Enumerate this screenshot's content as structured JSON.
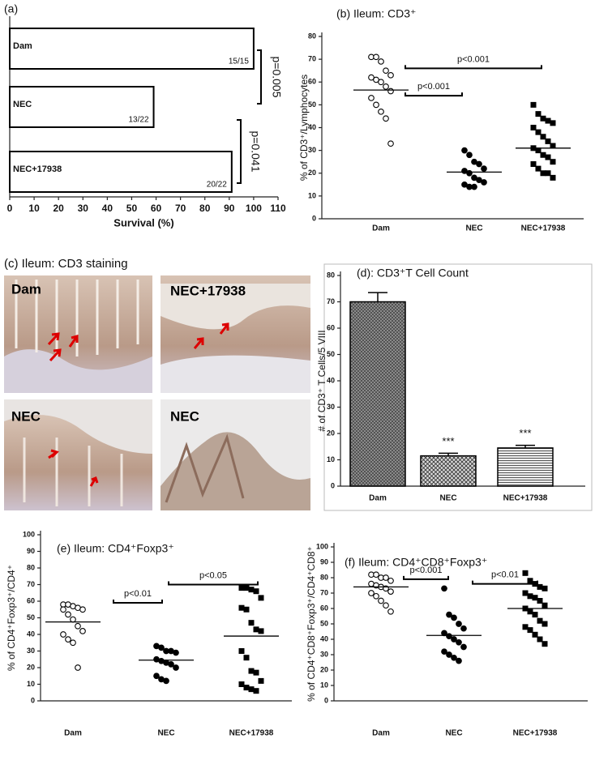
{
  "chart_data": [
    {
      "type": "hbar",
      "title": "(a)",
      "categories": [
        "Dam",
        "NEC",
        "NEC+17938"
      ],
      "values": [
        100,
        59,
        91
      ],
      "value_labels": [
        "15/15",
        "13/22",
        "20/22"
      ],
      "color": "#ffffff",
      "xlim": [
        0,
        110
      ],
      "xticks": [
        0,
        10,
        20,
        30,
        40,
        50,
        60,
        70,
        80,
        90,
        100,
        110
      ],
      "xlabel": "Survival (%)",
      "annotations": [
        {
          "text": "p=0.005"
        },
        {
          "text": "p=0.041"
        }
      ]
    },
    {
      "type": "dot",
      "title": "(b) Ileum: CD3⁺",
      "ylabel": "% of CD3⁺/Lymphocytes",
      "categories": [
        "Dam",
        "NEC",
        "NEC+17938"
      ],
      "groups": [
        {
          "marker": "open-circle",
          "values": [
            71,
            71,
            69,
            65,
            63,
            62,
            61,
            60,
            58,
            56,
            53,
            50,
            47,
            44,
            33
          ],
          "mean": 56.5
        },
        {
          "marker": "filled-circle",
          "values": [
            30,
            28,
            25,
            24,
            22,
            21,
            20,
            18,
            17,
            16,
            15,
            14,
            14
          ],
          "mean": 20.5
        },
        {
          "marker": "filled-square",
          "values": [
            50,
            46,
            44,
            43,
            42,
            40,
            38,
            36,
            34,
            32,
            31,
            30,
            28,
            27,
            25,
            24,
            22,
            20,
            20,
            18
          ],
          "mean": 31
        }
      ],
      "ylim": [
        0,
        80
      ],
      "yticks": [
        0,
        10,
        20,
        30,
        40,
        50,
        60,
        70,
        80
      ],
      "annotations": [
        {
          "text": "p<0.001",
          "y": 54
        },
        {
          "text": "p<0.001",
          "y": 66
        }
      ]
    },
    {
      "type": "bar",
      "title": "(d): CD3⁺T Cell Count",
      "ylabel": "# of CD3⁺ T Cells/5 VIII",
      "categories": [
        "Dam",
        "NEC",
        "NEC+17938"
      ],
      "values": [
        70,
        11.5,
        14.5
      ],
      "errors": [
        3.5,
        1,
        1
      ],
      "ylim": [
        0,
        80
      ],
      "yticks": [
        0,
        10,
        20,
        30,
        40,
        50,
        60,
        70,
        80
      ],
      "annotations": [
        {
          "text": "***"
        },
        {
          "text": "***"
        }
      ]
    },
    {
      "type": "dot",
      "title": "(e) Ileum: CD4⁺Foxp3⁺",
      "ylabel": "% of CD4⁺Foxp3⁺/CD4⁺",
      "categories": [
        "Dam",
        "NEC",
        "NEC+17938"
      ],
      "groups": [
        {
          "marker": "open-circle",
          "values": [
            58,
            58,
            57,
            56,
            55,
            55,
            52,
            49,
            45,
            42,
            40,
            37,
            35,
            20
          ],
          "mean": 47.5
        },
        {
          "marker": "filled-circle",
          "values": [
            33,
            32,
            30,
            30,
            29,
            25,
            24,
            23,
            22,
            20,
            15,
            13,
            12
          ],
          "mean": 24.5
        },
        {
          "marker": "filled-square",
          "values": [
            68,
            68,
            67,
            66,
            62,
            56,
            55,
            47,
            43,
            42,
            30,
            26,
            18,
            17,
            12,
            10,
            8,
            7,
            6
          ],
          "mean": 39
        }
      ],
      "ylim": [
        0,
        100
      ],
      "yticks": [
        0,
        10,
        20,
        30,
        40,
        50,
        60,
        70,
        80,
        90,
        100
      ],
      "annotations": [
        {
          "text": "p<0.01",
          "y": 59
        },
        {
          "text": "p<0.05",
          "y": 70
        }
      ]
    },
    {
      "type": "dot",
      "title": "(f) Ileum: CD4⁺CD8⁺Foxp3⁺",
      "ylabel": "% of CD4⁺CD8⁺Foxp3⁺/CD4⁺CD8⁺",
      "categories": [
        "Dam",
        "NEC",
        "NEC+17938"
      ],
      "groups": [
        {
          "marker": "open-circle",
          "values": [
            82,
            82,
            80,
            80,
            78,
            76,
            75,
            74,
            73,
            71,
            70,
            68,
            65,
            62,
            58
          ],
          "mean": 74
        },
        {
          "marker": "filled-circle",
          "values": [
            73,
            56,
            54,
            50,
            47,
            44,
            42,
            40,
            38,
            35,
            32,
            30,
            28,
            26
          ],
          "mean": 42.5
        },
        {
          "marker": "filled-square",
          "values": [
            83,
            78,
            76,
            74,
            73,
            70,
            68,
            67,
            65,
            62,
            60,
            58,
            56,
            52,
            50,
            48,
            46,
            43,
            40,
            37
          ],
          "mean": 60
        }
      ],
      "ylim": [
        0,
        100
      ],
      "yticks": [
        0,
        10,
        20,
        30,
        40,
        50,
        60,
        70,
        80,
        90,
        100
      ],
      "annotations": [
        {
          "text": "p<0.001",
          "y": 79
        },
        {
          "text": "p<0.01",
          "y": 76
        }
      ]
    }
  ],
  "panel_c": {
    "title": "(c) Ileum: CD3 staining",
    "images": [
      {
        "label": "Dam"
      },
      {
        "label": "NEC+17938"
      },
      {
        "label": "NEC"
      },
      {
        "label": "NEC"
      }
    ]
  }
}
